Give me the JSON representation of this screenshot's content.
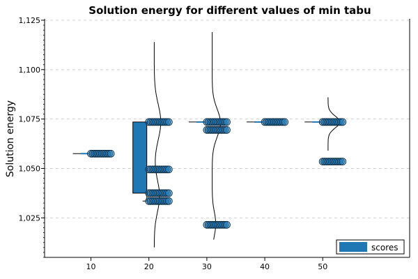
{
  "chart_data": {
    "type": "box",
    "title": "Solution energy for different values of min tabu",
    "xlabel": "",
    "ylabel": "Solution energy",
    "categories": [
      10,
      20,
      30,
      40,
      50
    ],
    "category_labels": [
      "10",
      "20",
      "30",
      "40",
      "50"
    ],
    "xlim": [
      2,
      65
    ],
    "ylim": [
      1005,
      1125
    ],
    "yticks": [
      1025,
      1050,
      1075,
      1100,
      1125
    ],
    "ytick_labels": [
      "1,025",
      "1,050",
      "1,075",
      "1,100",
      "1,125"
    ],
    "grid": true,
    "legend": {
      "label": "scores",
      "position": "bottom-right"
    },
    "colors": {
      "box": "#1f77b4",
      "point": "#1f77b4",
      "grid": "#d0d0d0"
    },
    "boxes": [
      {
        "x": 10,
        "q1": 1057.5,
        "q3": 1057.5,
        "median": 1057.5,
        "whisker_low": 1057.5,
        "whisker_high": 1057.5
      },
      {
        "x": 20,
        "q1": 1037.5,
        "q3": 1073.5,
        "median": 1073.5,
        "whisker_low": 1033.5,
        "whisker_high": 1073.5
      },
      {
        "x": 30,
        "q1": 1073.5,
        "q3": 1073.5,
        "median": 1073.5,
        "whisker_low": 1073.5,
        "whisker_high": 1073.5
      },
      {
        "x": 40,
        "q1": 1073.5,
        "q3": 1073.5,
        "median": 1073.5,
        "whisker_low": 1073.5,
        "whisker_high": 1073.5
      },
      {
        "x": 50,
        "q1": 1073.5,
        "q3": 1073.5,
        "median": 1073.5,
        "whisker_low": 1073.5,
        "whisker_high": 1073.5
      }
    ],
    "points": [
      {
        "x": 10,
        "values": [
          1057.5
        ]
      },
      {
        "x": 20,
        "values": [
          1073.5,
          1049.5,
          1037.5,
          1033.5
        ]
      },
      {
        "x": 30,
        "values": [
          1073.5,
          1069.5,
          1021.5
        ]
      },
      {
        "x": 40,
        "values": [
          1073.5
        ]
      },
      {
        "x": 50,
        "values": [
          1073.5,
          1053.5
        ]
      }
    ],
    "densities": [
      {
        "x": 20,
        "range": [
          1010,
          1114
        ],
        "peaks": [
          {
            "y": 1073.5,
            "sigma": 9,
            "amp": 0.55
          },
          {
            "y": 1036,
            "sigma": 8,
            "amp": 0.45
          }
        ]
      },
      {
        "x": 30,
        "range": [
          1014,
          1119
        ],
        "peaks": [
          {
            "y": 1073,
            "sigma": 7,
            "amp": 0.7
          },
          {
            "y": 1022,
            "sigma": 6,
            "amp": 0.3
          }
        ]
      },
      {
        "x": 50,
        "range": [
          1059,
          1086
        ],
        "peaks": [
          {
            "y": 1073.5,
            "sigma": 3,
            "amp": 1.0
          }
        ]
      }
    ]
  }
}
